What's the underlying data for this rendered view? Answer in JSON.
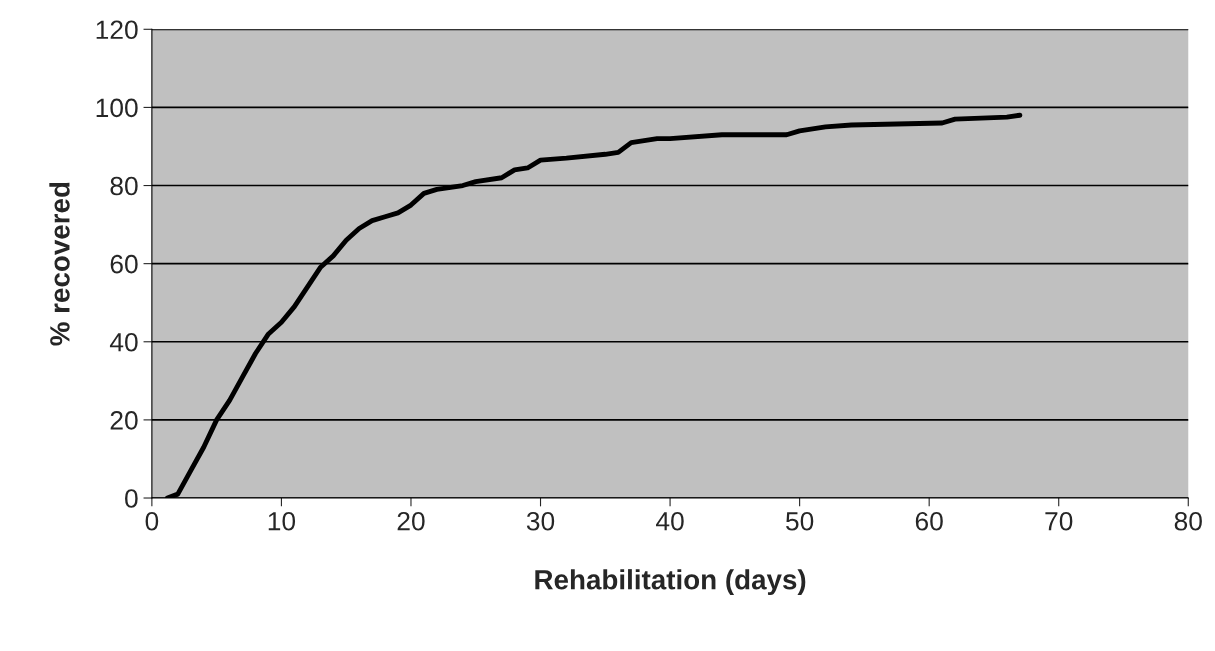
{
  "chart_data": {
    "type": "line",
    "xlabel": "Rehabilitation (days)",
    "ylabel": "% recovered",
    "xlim": [
      0,
      80
    ],
    "xticks": [
      0,
      10,
      20,
      30,
      40,
      50,
      60,
      70,
      80
    ],
    "ylim": [
      0,
      120
    ],
    "yticks": [
      0,
      20,
      40,
      60,
      80,
      100,
      120
    ],
    "grid": "y",
    "legend": false,
    "marker": "none",
    "line_style": "solid",
    "series": [
      {
        "color": "#000000",
        "x": [
          1.2,
          2,
          3,
          4,
          5,
          6,
          7,
          8,
          9,
          10,
          11,
          12,
          13,
          14,
          15,
          16,
          17,
          18,
          19,
          20,
          21,
          22,
          24,
          25,
          27,
          28,
          29,
          30,
          32,
          35,
          36,
          37,
          39,
          40,
          44,
          49,
          50,
          52,
          54,
          61,
          62,
          66,
          67
        ],
        "values": [
          0,
          1,
          7,
          13,
          20,
          25,
          31,
          37,
          42,
          45,
          49,
          54,
          59,
          62,
          66,
          69,
          71,
          72,
          73,
          75,
          78,
          79,
          80,
          81,
          82,
          84,
          84.5,
          86.5,
          87,
          88,
          88.5,
          91,
          92,
          92,
          93,
          93,
          94,
          95,
          95.5,
          96,
          97,
          97.5,
          98
        ]
      }
    ]
  }
}
